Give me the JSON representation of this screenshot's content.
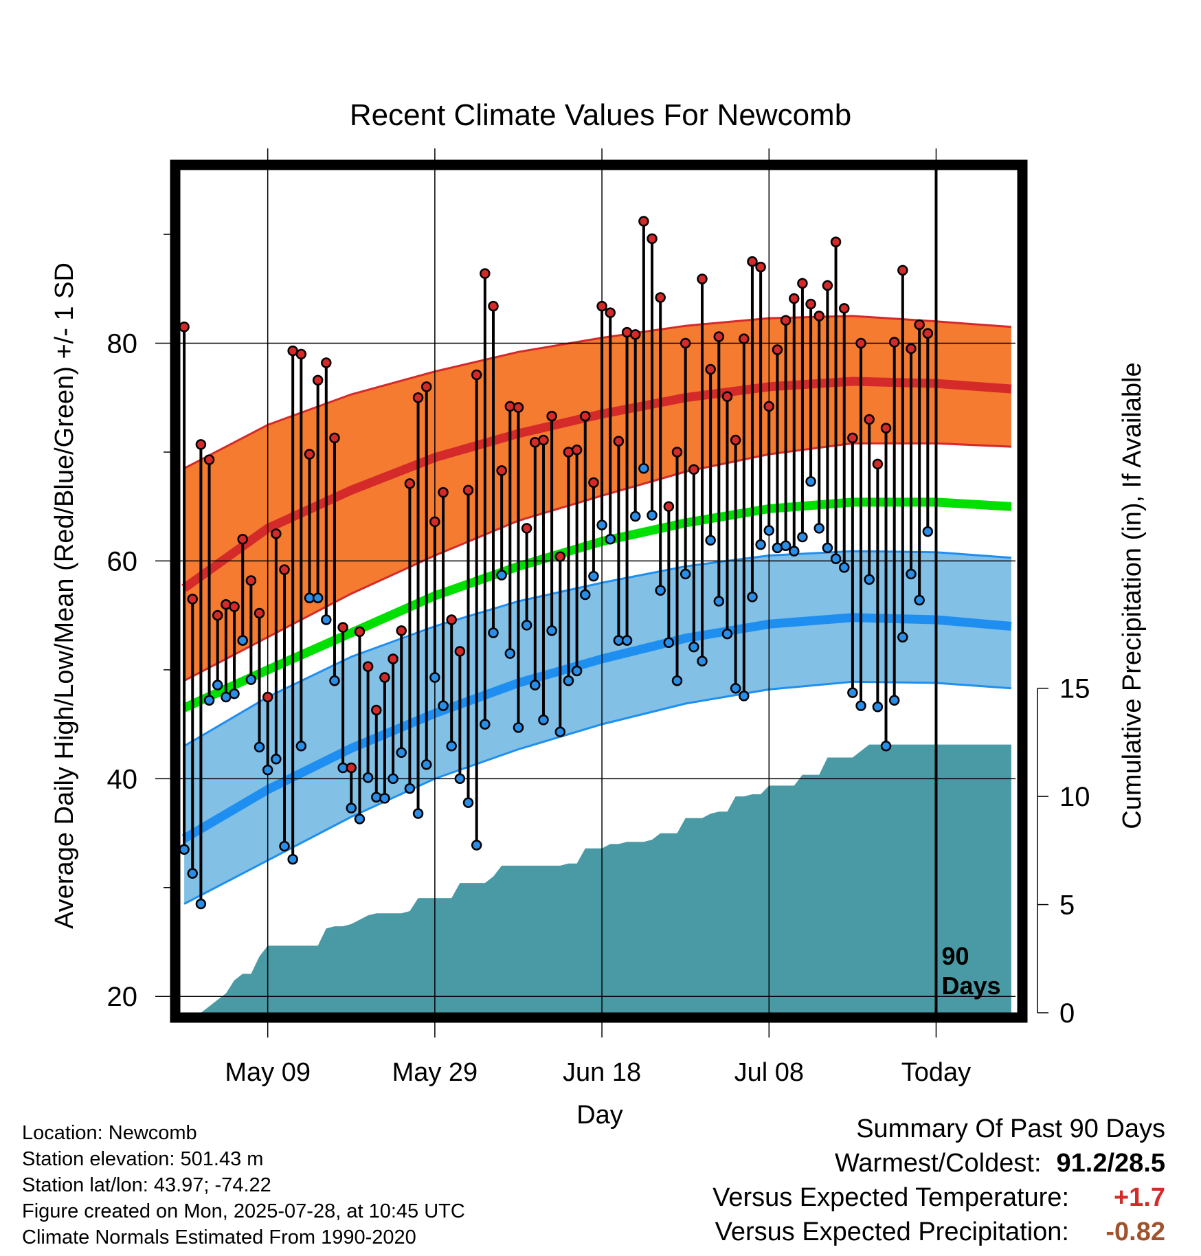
{
  "chart_data": {
    "type": "line",
    "title": "Recent Climate Values For Newcomb",
    "xlabel": "Day",
    "ylabel": "Average Daily High/Low/Mean (Red/Blue/Green) +/- 1 SD",
    "y2label": "Cumulative Precipitation (in), If Available",
    "ylim": [
      18.5,
      96
    ],
    "y2lim": [
      0,
      39
    ],
    "xlim": [
      -10.5,
      89.5
    ],
    "x_ticks": [
      {
        "x": 0,
        "label": "May 09"
      },
      {
        "x": 20,
        "label": "May 29"
      },
      {
        "x": 40,
        "label": "Jun 18"
      },
      {
        "x": 60,
        "label": "Jul 08"
      },
      {
        "x": 80,
        "label": "Today"
      }
    ],
    "y_ticks": [
      20,
      40,
      60,
      80
    ],
    "y_minor_ticks": [
      30,
      50,
      70,
      90
    ],
    "y2_ticks": [
      0,
      5,
      10,
      15
    ],
    "today_x": 80,
    "today_label": "90 Days",
    "grid": true,
    "colors": {
      "high_band": "#f47b30",
      "high_line": "#d42a2a",
      "low_band": "#82c0e6",
      "low_line": "#1e8ff0",
      "mean_line": "#00e000",
      "precip": "#4a9aa5",
      "high_dot": "#d42a2a",
      "low_dot": "#2a8ee8"
    },
    "normals": {
      "x": [
        -10,
        0,
        10,
        20,
        30,
        40,
        50,
        60,
        70,
        80,
        89
      ],
      "high_mean": [
        57.5,
        63.0,
        66.5,
        69.5,
        71.7,
        73.5,
        75.0,
        76.0,
        76.5,
        76.3,
        75.8
      ],
      "high_upper": [
        68.5,
        72.5,
        75.3,
        77.4,
        79.2,
        80.5,
        81.6,
        82.3,
        82.5,
        82.0,
        81.5
      ],
      "high_lower": [
        49.0,
        53.0,
        57.0,
        60.5,
        63.7,
        66.0,
        68.2,
        69.8,
        70.8,
        70.8,
        70.5
      ],
      "mean": [
        46.5,
        50.0,
        53.4,
        56.8,
        59.5,
        61.8,
        63.5,
        64.8,
        65.4,
        65.4,
        65.0
      ],
      "low_mean": [
        34.5,
        39.0,
        42.8,
        46.0,
        48.8,
        51.0,
        52.9,
        54.2,
        54.8,
        54.6,
        54.0
      ],
      "low_upper": [
        43.0,
        47.5,
        51.2,
        54.0,
        56.3,
        58.0,
        59.5,
        60.5,
        60.9,
        60.8,
        60.3
      ],
      "low_lower": [
        28.5,
        32.5,
        36.5,
        40.0,
        42.7,
        45.0,
        46.9,
        48.2,
        48.9,
        48.8,
        48.3
      ]
    },
    "daily_high": [
      81.5,
      56.5,
      70.7,
      69.3,
      55.0,
      56.0,
      55.8,
      62.0,
      58.2,
      55.2,
      47.5,
      62.5,
      59.2,
      79.3,
      79.0,
      69.8,
      76.6,
      78.2,
      71.3,
      53.9,
      41.0,
      53.5,
      50.3,
      46.3,
      49.3,
      51.0,
      53.6,
      67.1,
      75.0,
      76.0,
      63.6,
      66.3,
      54.6,
      51.7,
      66.5,
      77.1,
      86.4,
      83.4,
      68.3,
      74.2,
      74.1,
      63.0,
      70.9,
      71.1,
      73.3,
      60.4,
      70.0,
      70.2,
      73.3,
      67.2,
      83.4,
      82.8,
      71.0,
      81.0,
      80.8,
      91.2,
      89.6,
      84.2,
      65.0,
      70.0,
      80.0,
      68.4,
      85.9,
      77.6,
      80.6,
      75.1,
      71.1,
      80.4,
      87.5,
      87.0,
      74.2,
      79.4,
      82.1,
      84.1,
      85.5,
      83.6,
      82.5,
      85.3,
      89.3,
      83.2,
      71.3,
      80.0,
      73.0,
      68.9,
      72.2,
      80.1,
      86.7,
      79.5,
      81.7,
      80.9
    ],
    "daily_low": [
      33.5,
      31.3,
      28.5,
      47.2,
      48.6,
      47.5,
      47.8,
      52.7,
      49.1,
      42.9,
      40.8,
      41.8,
      33.8,
      32.6,
      43.0,
      56.6,
      56.6,
      54.6,
      49.0,
      41.0,
      37.3,
      36.3,
      40.1,
      38.3,
      38.2,
      40.0,
      42.4,
      39.1,
      36.8,
      41.3,
      49.3,
      46.7,
      43.0,
      40.0,
      37.8,
      33.9,
      45.0,
      53.4,
      58.7,
      51.5,
      44.7,
      54.1,
      48.6,
      45.4,
      53.6,
      44.3,
      49.0,
      49.9,
      56.9,
      58.6,
      63.3,
      62.0,
      52.7,
      52.7,
      64.1,
      68.5,
      64.2,
      57.3,
      52.5,
      49.0,
      58.8,
      52.1,
      50.8,
      61.9,
      56.3,
      53.3,
      48.3,
      47.6,
      56.7,
      61.5,
      62.8,
      61.2,
      61.4,
      60.9,
      62.2,
      67.3,
      63.0,
      61.2,
      60.2,
      59.4,
      47.9,
      46.7,
      58.3,
      46.6,
      43.0,
      47.2,
      53.0,
      58.8,
      56.4,
      62.7
    ],
    "precip_x": [
      -10,
      -8,
      -7,
      -6,
      -5,
      -4,
      -3,
      -2,
      -1,
      0,
      1,
      2,
      3,
      4,
      5,
      6,
      7,
      8,
      9,
      10,
      11,
      12,
      13,
      14,
      15,
      16,
      17,
      18,
      19,
      20,
      21,
      22,
      23,
      24,
      25,
      26,
      27,
      28,
      29,
      30,
      31,
      32,
      33,
      34,
      35,
      36,
      37,
      38,
      39,
      40,
      41,
      42,
      43,
      44,
      45,
      46,
      47,
      48,
      49,
      50,
      51,
      52,
      53,
      54,
      55,
      56,
      57,
      58,
      59,
      60,
      61,
      62,
      63,
      64,
      65,
      66,
      67,
      68,
      69,
      70,
      71,
      72,
      73,
      74,
      75,
      76,
      77,
      78,
      79,
      80,
      81,
      89
    ],
    "precip": [
      0,
      0,
      0.3,
      0.6,
      0.9,
      1.5,
      1.8,
      1.8,
      2.6,
      3.1,
      3.1,
      3.1,
      3.1,
      3.1,
      3.1,
      3.1,
      3.9,
      4.0,
      4.0,
      4.1,
      4.3,
      4.5,
      4.6,
      4.6,
      4.6,
      4.6,
      4.7,
      5.3,
      5.3,
      5.3,
      5.3,
      5.3,
      6.0,
      6.0,
      6.0,
      6.0,
      6.3,
      6.8,
      6.8,
      6.8,
      6.8,
      6.8,
      6.8,
      6.8,
      6.8,
      6.9,
      6.9,
      7.6,
      7.6,
      7.6,
      7.8,
      7.8,
      7.9,
      7.9,
      7.9,
      8.0,
      8.3,
      8.3,
      8.3,
      9.0,
      9.0,
      9.0,
      9.2,
      9.3,
      9.3,
      10.0,
      10.0,
      10.1,
      10.1,
      10.5,
      10.5,
      10.5,
      10.5,
      11.0,
      11.0,
      11.0,
      11.8,
      11.8,
      11.8,
      11.8,
      12.1,
      12.4,
      12.4,
      12.4,
      12.4,
      12.4,
      12.4,
      12.4,
      12.4,
      12.4,
      12.4,
      12.4
    ]
  },
  "location": {
    "name_label": "Location: Newcomb",
    "elevation_label": "Station elevation: 501.43 m",
    "latlon_label": "Station lat/lon: 43.97; -74.22",
    "created_label": "Figure created on Mon, 2025-07-28, at 10:45 UTC",
    "normals_label": "Climate Normals Estimated From 1990-2020"
  },
  "summary": {
    "title": "Summary Of Past 90 Days",
    "warm_cold_label": "Warmest/Coldest:",
    "warm_cold_value": "91.2/28.5",
    "temp_label": "Versus Expected Temperature:",
    "temp_value": "+1.7",
    "temp_color": "#d42a2a",
    "precip_label": "Versus Expected Precipitation:",
    "precip_value": "-0.82",
    "precip_color": "#a0522d"
  }
}
